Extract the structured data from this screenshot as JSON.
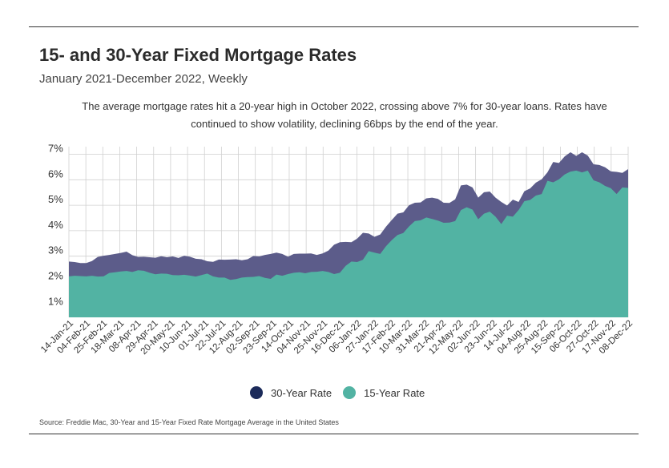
{
  "header": {
    "title": "15- and 30-Year Fixed Mortgage Rates",
    "subtitle": "January 2021-December 2022, Weekly"
  },
  "annotation": {
    "line1": "The average mortgage rates hit a 20-year high in October 2022, crossing above 7% for 30-year loans. Rates have",
    "line2": "continued to show volatility, declining 66bps by the end of the year."
  },
  "source": "Source:  Freddie Mac, 30-Year  and 15-Year Fixed Rate Mortgage Average in the United States",
  "colors": {
    "series_30": "#5c5c8a",
    "series_15": "#52b3a3",
    "legend_30": "#1c2b5a",
    "legend_15": "#52b3a3",
    "grid": "#d0d0d0",
    "text": "#333333"
  },
  "chart_data": {
    "type": "area",
    "title": "15- and 30-Year Fixed Mortgage Rates",
    "xlabel": "",
    "ylabel": "",
    "ylim": [
      0.6,
      7.3
    ],
    "grid": true,
    "legend_position": "bottom-center",
    "yticks": [
      "1%",
      "2%",
      "3%",
      "4%",
      "5%",
      "6%",
      "7%"
    ],
    "ytick_values": [
      1,
      2,
      3,
      4,
      5,
      6,
      7
    ],
    "xtick_labels": [
      "14-Jan-21",
      "04-Feb-21",
      "25-Feb-21",
      "18-Mar-21",
      "08-Apr-21",
      "29-Apr-21",
      "20-May-21",
      "10-Jun-21",
      "01-Jul-21",
      "22-Jul-21",
      "12-Aug-21",
      "02-Sep-21",
      "23-Sep-21",
      "14-Oct-21",
      "04-Nov-21",
      "25-Nov-21",
      "16-Dec-21",
      "06-Jan-22",
      "27-Jan-22",
      "17-Feb-22",
      "10-Mar-22",
      "31-Mar-22",
      "21-Apr-22",
      "12-May-22",
      "02-Jun-22",
      "23-Jun-22",
      "14-Jul-22",
      "04-Aug-22",
      "25-Aug-22",
      "15-Sep-22",
      "06-Oct-22",
      "27-Oct-22",
      "17-Nov-22",
      "08-Dec-22"
    ],
    "series": [
      {
        "name": "30-Year Rate",
        "values": [
          2.79,
          2.77,
          2.73,
          2.73,
          2.81,
          2.97,
          3.02,
          3.05,
          3.09,
          3.13,
          3.18,
          3.04,
          2.97,
          2.98,
          2.96,
          2.94,
          3.0,
          2.96,
          2.99,
          2.93,
          3.02,
          2.98,
          2.9,
          2.88,
          2.8,
          2.78,
          2.87,
          2.86,
          2.87,
          2.88,
          2.84,
          2.88,
          3.01,
          2.99,
          3.05,
          3.09,
          3.14,
          3.09,
          2.98,
          3.09,
          3.1,
          3.1,
          3.11,
          3.05,
          3.11,
          3.22,
          3.45,
          3.55,
          3.56,
          3.55,
          3.69,
          3.92,
          3.89,
          3.76,
          3.85,
          4.16,
          4.42,
          4.67,
          4.72,
          5.0,
          5.1,
          5.11,
          5.27,
          5.3,
          5.25,
          5.1,
          5.09,
          5.23,
          5.78,
          5.81,
          5.7,
          5.3,
          5.51,
          5.54,
          5.3,
          5.13,
          4.99,
          5.22,
          5.13,
          5.55,
          5.66,
          5.89,
          6.02,
          6.29,
          6.7,
          6.66,
          6.92,
          7.08,
          6.94,
          7.08,
          6.95,
          6.61,
          6.58,
          6.49,
          6.33,
          6.31,
          6.27,
          6.42
        ]
      },
      {
        "name": "15-Year Rate",
        "values": [
          2.21,
          2.23,
          2.22,
          2.21,
          2.23,
          2.2,
          2.21,
          2.34,
          2.37,
          2.4,
          2.42,
          2.38,
          2.45,
          2.43,
          2.35,
          2.29,
          2.32,
          2.31,
          2.26,
          2.25,
          2.27,
          2.24,
          2.2,
          2.26,
          2.32,
          2.21,
          2.16,
          2.16,
          2.07,
          2.1,
          2.16,
          2.18,
          2.19,
          2.22,
          2.15,
          2.11,
          2.28,
          2.23,
          2.3,
          2.35,
          2.37,
          2.33,
          2.38,
          2.39,
          2.42,
          2.38,
          2.3,
          2.35,
          2.62,
          2.79,
          2.77,
          2.86,
          3.2,
          3.14,
          3.09,
          3.39,
          3.63,
          3.83,
          3.91,
          4.17,
          4.38,
          4.41,
          4.52,
          4.46,
          4.4,
          4.31,
          4.32,
          4.38,
          4.81,
          4.92,
          4.83,
          4.45,
          4.67,
          4.75,
          4.55,
          4.26,
          4.59,
          4.55,
          4.81,
          5.16,
          5.21,
          5.38,
          5.44,
          5.96,
          5.9,
          6.02,
          6.21,
          6.32,
          6.36,
          6.29,
          6.36,
          5.98,
          5.9,
          5.76,
          5.67,
          5.44,
          5.7,
          5.68
        ]
      }
    ]
  },
  "legend": {
    "items": [
      {
        "label": "30-Year Rate"
      },
      {
        "label": "15-Year Rate"
      }
    ]
  }
}
